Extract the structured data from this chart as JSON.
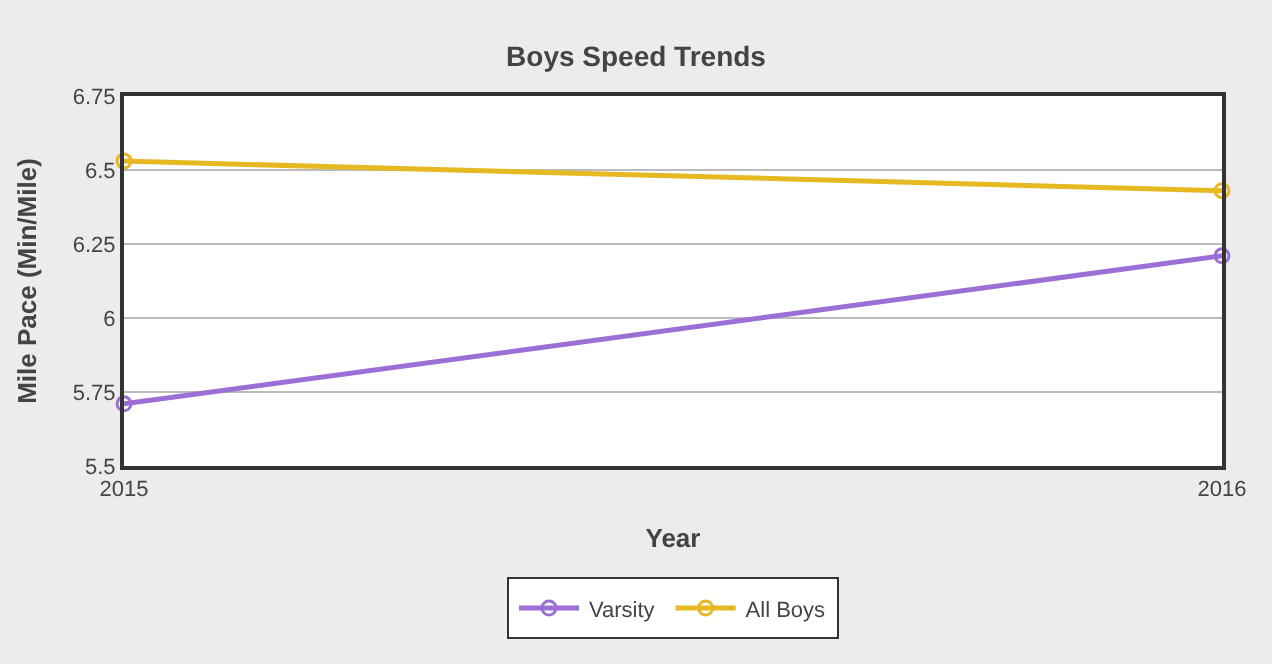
{
  "chart_data": {
    "type": "line",
    "title": "Boys Speed Trends",
    "xlabel": "Year",
    "ylabel": "Mile Pace (Min/Mile)",
    "x": [
      2015,
      2016
    ],
    "xlim": [
      2015,
      2016
    ],
    "xticks": [
      2015,
      2016
    ],
    "ylim": [
      5.5,
      6.75
    ],
    "yticks": [
      5.5,
      5.75,
      6,
      6.25,
      6.5,
      6.75
    ],
    "series": [
      {
        "name": "Varsity",
        "color": "#9b6fd6",
        "values": [
          5.71,
          6.21
        ]
      },
      {
        "name": "All Boys",
        "color": "#e6b822",
        "values": [
          6.53,
          6.43
        ]
      }
    ],
    "grid": "y",
    "legend": "bottom",
    "marker": "circle",
    "line_style": "solid"
  }
}
